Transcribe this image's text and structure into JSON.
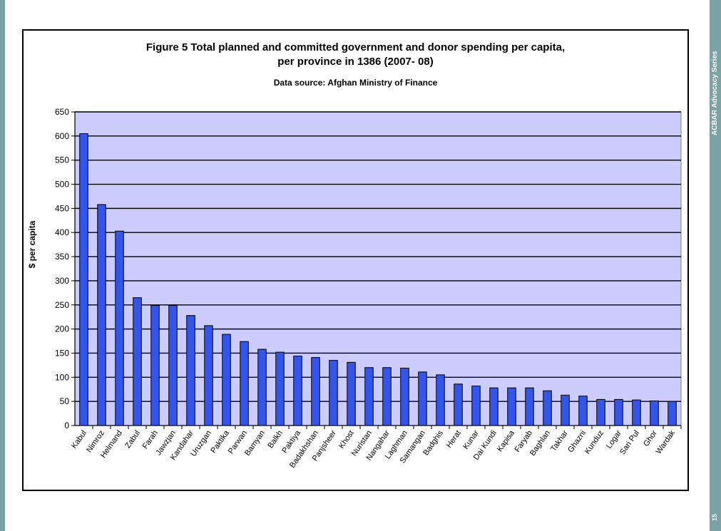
{
  "side": {
    "series_label": "ACBAR Advocacy Series",
    "page_number": "15",
    "band_color": "#7aa3a3"
  },
  "chart_data": {
    "type": "bar",
    "title_line1": "Figure 5  Total planned and committed government and donor spending per capita,",
    "title_line2": "per province in 1386 (2007- 08)",
    "subtitle": "Data source: Afghan Ministry of Finance",
    "xlabel": "",
    "ylabel": "$ per capita",
    "ylim": [
      0,
      650
    ],
    "yticks": [
      0,
      50,
      100,
      150,
      200,
      250,
      300,
      350,
      400,
      450,
      500,
      550,
      600,
      650
    ],
    "grid": true,
    "plot_bg": "#ccccff",
    "bar_color": "#3355ee",
    "categories": [
      "Kabul",
      "Nimroz",
      "Helmand",
      "Zabul",
      "Farah",
      "Jawzjan",
      "Kandahar",
      "Uruzgan",
      "Paktika",
      "Parwan",
      "Bamyan",
      "Balkh",
      "Paktiya",
      "Badakhshan",
      "Panjsheer",
      "Khost",
      "Nuristan",
      "Nangahar",
      "Laghman",
      "Samangan",
      "Badghis",
      "Herat",
      "Kunar",
      "Dai Kundi",
      "Kapisa",
      "Faryab",
      "Baghlan",
      "Takhar",
      "Ghazni",
      "Kunduz",
      "Logar",
      "Sari Pul",
      "Ghor",
      "Wardak"
    ],
    "values": [
      605,
      458,
      403,
      265,
      249,
      249,
      228,
      207,
      189,
      174,
      158,
      152,
      144,
      141,
      135,
      131,
      120,
      120,
      119,
      111,
      105,
      86,
      82,
      78,
      78,
      78,
      72,
      63,
      61,
      54,
      54,
      53,
      51,
      50
    ]
  }
}
